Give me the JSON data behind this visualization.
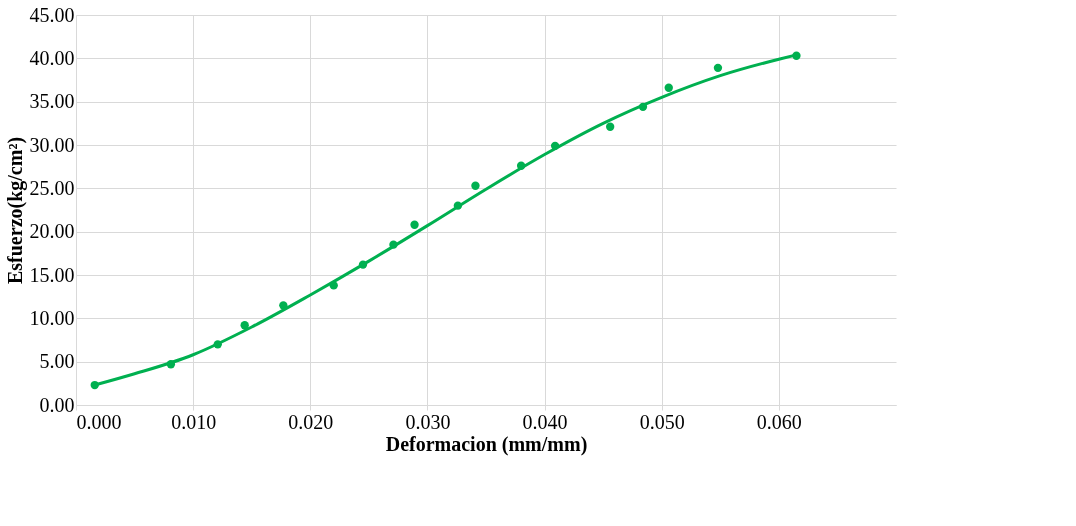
{
  "chart_data": {
    "type": "scatter",
    "xlabel": "Deformacion (mm/mm)",
    "ylabel": "Esfuerzo(kg/cm²)",
    "xlim": [
      0,
      0.07
    ],
    "ylim": [
      0,
      45
    ],
    "xticks": [
      {
        "value": 0,
        "label": "0.000"
      },
      {
        "value": 0.01,
        "label": "0.010"
      },
      {
        "value": 0.02,
        "label": "0.020"
      },
      {
        "value": 0.03,
        "label": "0.030"
      },
      {
        "value": 0.04,
        "label": "0.040"
      },
      {
        "value": 0.05,
        "label": "0.050"
      },
      {
        "value": 0.06,
        "label": "0.060"
      }
    ],
    "yticks": [
      {
        "value": 0,
        "label": "0.00"
      },
      {
        "value": 5,
        "label": "5.00"
      },
      {
        "value": 10,
        "label": "10.00"
      },
      {
        "value": 15,
        "label": "15.00"
      },
      {
        "value": 20,
        "label": "20.00"
      },
      {
        "value": 25,
        "label": "25.00"
      },
      {
        "value": 30,
        "label": "30.00"
      },
      {
        "value": 35,
        "label": "35.00"
      },
      {
        "value": 40,
        "label": "40.00"
      },
      {
        "value": 45,
        "label": "45.00"
      }
    ],
    "grid": true,
    "series": [
      {
        "color": "#00b050",
        "marker": "circle",
        "x": [
          0.0016,
          0.0081,
          0.0121,
          0.0144,
          0.0177,
          0.022,
          0.0245,
          0.0271,
          0.0289,
          0.0326,
          0.0341,
          0.038,
          0.0409,
          0.0456,
          0.0484,
          0.0506,
          0.0548,
          0.0615
        ],
        "values": [
          2.3,
          4.7,
          7.0,
          9.2,
          11.5,
          13.8,
          16.2,
          18.5,
          20.8,
          23.0,
          25.3,
          27.6,
          29.9,
          32.1,
          34.4,
          36.6,
          38.9,
          40.3
        ]
      },
      {
        "type": "line",
        "color": "#00b050",
        "line_style": "solid",
        "x": [
          0.0016,
          0.005,
          0.01,
          0.015,
          0.02,
          0.025,
          0.03,
          0.035,
          0.04,
          0.045,
          0.05,
          0.055,
          0.06,
          0.0615
        ],
        "values": [
          2.3,
          3.6,
          5.8,
          9.0,
          12.7,
          16.6,
          20.7,
          24.9,
          28.9,
          32.5,
          35.5,
          38.0,
          39.9,
          40.4
        ]
      }
    ]
  }
}
